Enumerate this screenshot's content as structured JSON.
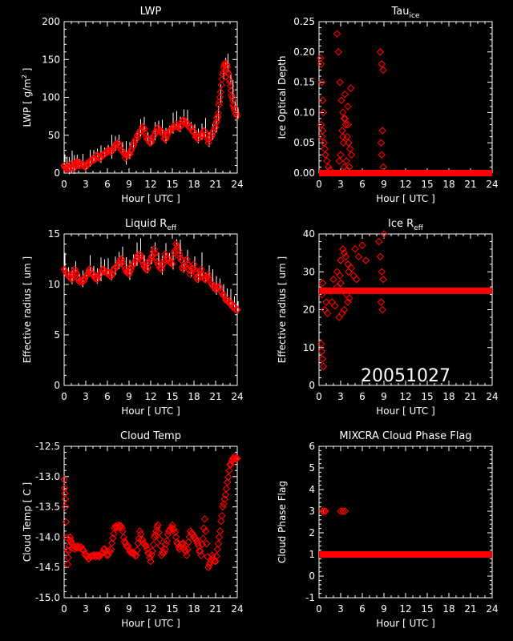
{
  "figure": {
    "date_stamp": "20051027",
    "background": "#000000",
    "axis_color": "#ffffff",
    "data_color": "#ff0000",
    "marker": "diamond-outline"
  },
  "chart_data": [
    {
      "type": "scatter",
      "title": "LWP",
      "xlabel": "Hour [ UTC ]",
      "ylabel": "LWP [ g/m^2 ]",
      "xlim": [
        0,
        24
      ],
      "ylim": [
        0,
        200
      ],
      "xticks": [
        0,
        3,
        6,
        9,
        12,
        15,
        18,
        21,
        24
      ],
      "yticks": [
        0,
        50,
        100,
        150,
        200
      ],
      "ytick_labels": [
        "0",
        "50",
        "100",
        "150",
        "200"
      ],
      "series": [
        {
          "x": [
            0,
            0.3,
            0.6,
            1,
            1.3,
            1.7,
            2,
            2.5,
            3,
            3.5,
            4,
            4.5,
            5,
            5.5,
            6,
            6.5,
            7,
            7.5,
            8,
            8.5,
            9,
            9.5,
            10,
            10.5,
            11,
            11.5,
            12,
            12.5,
            13,
            13.5,
            14,
            14.5,
            15,
            15.5,
            16,
            16.5,
            17,
            17.5,
            18,
            18.5,
            19,
            19.5,
            20,
            20.5,
            21,
            21.3,
            21.6,
            22,
            22.3,
            22.6,
            23,
            23.3,
            23.6,
            24
          ],
          "y": [
            10,
            8,
            5,
            12,
            6,
            15,
            10,
            12,
            8,
            15,
            18,
            22,
            20,
            25,
            30,
            28,
            35,
            40,
            30,
            20,
            25,
            35,
            45,
            55,
            60,
            45,
            40,
            50,
            60,
            55,
            45,
            55,
            60,
            65,
            60,
            70,
            65,
            60,
            55,
            45,
            50,
            55,
            40,
            50,
            60,
            75,
            100,
            130,
            145,
            140,
            120,
            100,
            85,
            75
          ],
          "errorbars": true
        }
      ]
    },
    {
      "type": "scatter",
      "title": "Tau_ice",
      "title_main": "Tau",
      "title_sub": "ice",
      "xlabel": "Hour [ UTC ]",
      "ylabel": "Ice Optical Depth",
      "xlim": [
        0,
        24
      ],
      "ylim": [
        0,
        0.25
      ],
      "xticks": [
        0,
        3,
        6,
        9,
        12,
        15,
        18,
        21,
        24
      ],
      "yticks": [
        0,
        0.05,
        0.1,
        0.15,
        0.2,
        0.25
      ],
      "ytick_labels": [
        "0.00",
        "0.05",
        "0.10",
        "0.15",
        "0.20",
        "0.25"
      ],
      "series": [
        {
          "x": [
            0.2,
            0.3,
            0.4,
            0.5,
            0.6,
            0.3,
            0.5,
            0.7,
            0.9,
            1.1,
            1.3,
            1.5,
            0.4,
            0.8,
            2.5,
            2.7,
            2.9,
            3.1,
            3.3,
            3.5,
            3.7,
            3.9,
            4.1,
            4.3,
            4.5,
            2.8,
            3.2,
            3.6,
            4.0,
            4.4,
            3.0,
            3.4,
            3.8,
            4.2,
            3.5,
            3.9,
            3.3,
            3.6,
            4.0,
            8.5,
            8.7,
            8.9,
            8.6,
            8.8,
            8.7,
            8.9
          ],
          "y": [
            0.19,
            0.18,
            0.15,
            0.12,
            0.1,
            0.08,
            0.07,
            0.05,
            0.03,
            0.02,
            0.01,
            0.005,
            0.06,
            0.04,
            0.23,
            0.2,
            0.15,
            0.12,
            0.1,
            0.09,
            0.08,
            0.06,
            0.05,
            0.04,
            0.03,
            0.02,
            0.07,
            0.13,
            0.11,
            0.14,
            0.03,
            0.05,
            0.02,
            0.01,
            0.01,
            0.005,
            0.06,
            0.09,
            0.08,
            0.2,
            0.18,
            0.17,
            0.05,
            0.07,
            0.03,
            0.01
          ]
        },
        {
          "x_range": [
            0,
            24
          ],
          "y": 0,
          "style": "dense-band"
        }
      ]
    },
    {
      "type": "scatter",
      "title": "Liquid R_eff",
      "title_main": "Liquid R",
      "title_sub": "eff",
      "xlabel": "Hour [ UTC ]",
      "ylabel": "Effective radius [ um ]",
      "xlim": [
        0,
        24
      ],
      "ylim": [
        0,
        15
      ],
      "xticks": [
        0,
        3,
        6,
        9,
        12,
        15,
        18,
        21,
        24
      ],
      "yticks": [
        0,
        5,
        10,
        15
      ],
      "ytick_labels": [
        "0",
        "5",
        "10",
        "15"
      ],
      "series": [
        {
          "x": [
            0,
            0.5,
            1,
            1.5,
            2,
            2.5,
            3,
            3.5,
            4,
            4.5,
            5,
            5.5,
            6,
            6.5,
            7,
            7.5,
            8,
            8.5,
            9,
            9.5,
            10,
            10.5,
            11,
            11.5,
            12,
            12.5,
            13,
            13.5,
            14,
            14.5,
            15,
            15.5,
            16,
            16.5,
            17,
            17.5,
            18,
            18.5,
            19,
            19.5,
            20,
            20.5,
            21,
            21.5,
            22,
            22.5,
            23,
            23.5,
            24
          ],
          "y": [
            11.5,
            11,
            10.5,
            11.5,
            10.5,
            10.2,
            10.8,
            11.5,
            11,
            10.5,
            11,
            11.5,
            11.2,
            10.8,
            11.5,
            12,
            12.5,
            11.5,
            11,
            12,
            12.5,
            13,
            12,
            11.5,
            12.5,
            13.5,
            12,
            11.5,
            13,
            12.5,
            12,
            14,
            13,
            11.5,
            12.5,
            11,
            12,
            10.5,
            11.5,
            10.5,
            11,
            10,
            9.5,
            9.8,
            9,
            8.5,
            8.2,
            7.8,
            7.5
          ],
          "errorbars": true
        }
      ]
    },
    {
      "type": "scatter",
      "title": "Ice R_eff",
      "title_main": "Ice R",
      "title_sub": "eff",
      "xlabel": "Hour [ UTC ]",
      "ylabel": "Effective radius [ um ]",
      "xlim": [
        0,
        24
      ],
      "ylim": [
        0,
        40
      ],
      "xticks": [
        0,
        3,
        6,
        9,
        12,
        15,
        18,
        21,
        24
      ],
      "yticks": [
        0,
        10,
        20,
        30,
        40
      ],
      "ytick_labels": [
        "0",
        "10",
        "20",
        "30",
        "40"
      ],
      "series": [
        {
          "x": [
            0.3,
            0.4,
            0.5,
            0.6,
            0.4,
            0.5,
            1,
            1.5,
            2,
            2.5,
            3,
            3.5,
            4,
            4.5,
            5,
            5.5,
            6,
            6.5,
            0.8,
            1.2,
            1.8,
            2.2,
            2.8,
            3.2,
            3.8,
            4.2,
            4.8,
            5.2,
            2.5,
            3,
            3.5,
            4,
            3.3,
            3.7,
            2.9,
            4.1,
            8.3,
            8.5,
            8.7,
            8.9,
            9,
            8.6,
            8.8
          ],
          "y": [
            11,
            9,
            7,
            5,
            24,
            27,
            22,
            25,
            28,
            30,
            33,
            35,
            32,
            31,
            36,
            34,
            37,
            33,
            20,
            19,
            22,
            21,
            18,
            19,
            24,
            23,
            29,
            28,
            26,
            27,
            20,
            22,
            36,
            34,
            29,
            30,
            38,
            34,
            30,
            28,
            40,
            22,
            20
          ]
        },
        {
          "x_range": [
            0,
            24
          ],
          "y": 25,
          "style": "dense-band"
        }
      ]
    },
    {
      "type": "scatter",
      "title": "Cloud Temp",
      "xlabel": "Hour [ UTC ]",
      "ylabel": "Cloud Temp [ C ]",
      "xlim": [
        0,
        24
      ],
      "ylim": [
        -15.0,
        -12.5
      ],
      "xticks": [
        0,
        3,
        6,
        9,
        12,
        15,
        18,
        21,
        24
      ],
      "yticks": [
        -15.0,
        -14.5,
        -14.0,
        -13.5,
        -13.0,
        -12.5
      ],
      "ytick_labels": [
        "-15.0",
        "-14.5",
        "-14.0",
        "-13.5",
        "-13.0",
        "-12.5"
      ],
      "series": [
        {
          "x": [
            0,
            0.2,
            0.5,
            0.8,
            1,
            1.5,
            2,
            2.5,
            3,
            3.5,
            4,
            4.5,
            5,
            5.5,
            6,
            6.5,
            7,
            7.5,
            8,
            8.5,
            9,
            9.5,
            10,
            10.5,
            11,
            11.5,
            12,
            12.5,
            13,
            13.5,
            14,
            14.5,
            15,
            15.5,
            16,
            16.5,
            17,
            17.5,
            18,
            18.5,
            19,
            19.5,
            20,
            20.5,
            21,
            21.5,
            22,
            22.5,
            23,
            23.5,
            24
          ],
          "y": [
            -13.05,
            -13.5,
            -14.45,
            -14.0,
            -14.1,
            -14.2,
            -14.15,
            -14.2,
            -14.3,
            -14.35,
            -14.3,
            -14.3,
            -14.3,
            -14.2,
            -14.3,
            -14.2,
            -13.85,
            -13.8,
            -13.85,
            -14.1,
            -14.2,
            -14.25,
            -14.3,
            -13.9,
            -14.1,
            -14.2,
            -14.4,
            -14.0,
            -13.8,
            -14.3,
            -14.2,
            -13.9,
            -13.8,
            -14.0,
            -14.2,
            -14.1,
            -14.3,
            -13.9,
            -14.0,
            -14.1,
            -14.3,
            -13.7,
            -14.5,
            -14.3,
            -14.4,
            -14.0,
            -13.5,
            -13.2,
            -12.8,
            -12.7,
            -12.7
          ]
        }
      ]
    },
    {
      "type": "scatter",
      "title": "MIXCRA Cloud Phase Flag",
      "xlabel": "Hour [ UTC ]",
      "ylabel": "Cloud Phase Flag",
      "xlim": [
        0,
        24
      ],
      "ylim": [
        -1,
        6
      ],
      "xticks": [
        0,
        3,
        6,
        9,
        12,
        15,
        18,
        21,
        24
      ],
      "yticks": [
        -1,
        0,
        1,
        2,
        3,
        4,
        5,
        6
      ],
      "ytick_labels": [
        "-1",
        "0",
        "1",
        "2",
        "3",
        "4",
        "5",
        "6"
      ],
      "series": [
        {
          "x": [
            0.5,
            0.7,
            0.9,
            3.0,
            3.3,
            3.6
          ],
          "y": [
            3,
            3,
            3,
            3,
            3,
            3
          ]
        },
        {
          "x_range": [
            0,
            24
          ],
          "y": 1,
          "style": "dense-band"
        }
      ]
    }
  ]
}
